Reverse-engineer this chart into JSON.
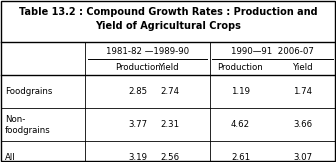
{
  "title_line1": "Table 13.2 : Compound Growth Rates : Production and",
  "title_line2": "Yield of Agricultural Crops",
  "period1": "1981-82 —1989-90",
  "period2": "1990—91  2006-07",
  "sub_prod": "Production",
  "sub_yield": "Yield",
  "rows": [
    {
      "label": "Foodgrains",
      "label2": "",
      "v1": "2.85",
      "v2": "2.74",
      "v3": "1.19",
      "v4": "1.74"
    },
    {
      "label": "Non-",
      "label2": "foodgrains",
      "v1": "3.77",
      "v2": "2.31",
      "v3": "4.62",
      "v4": "3.66"
    },
    {
      "label": "All",
      "label2": "",
      "v1": "3.19",
      "v2": "2.56",
      "v3": "2.61",
      "v4": "3.07"
    }
  ],
  "bg_color": "#ffffff",
  "border_color": "#000000",
  "fs_title": 7.0,
  "fs_header": 6.2,
  "fs_data": 6.2
}
